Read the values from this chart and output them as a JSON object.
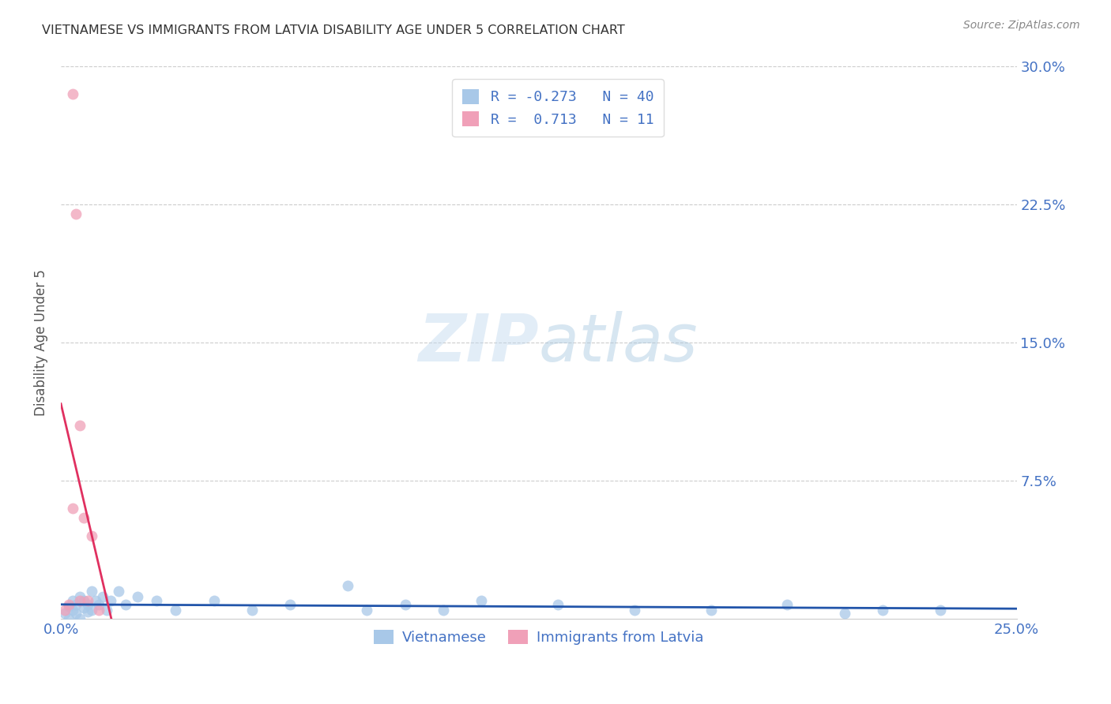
{
  "title": "VIETNAMESE VS IMMIGRANTS FROM LATVIA DISABILITY AGE UNDER 5 CORRELATION CHART",
  "source": "Source: ZipAtlas.com",
  "ylabel": "Disability Age Under 5",
  "xlabel": "",
  "xlim": [
    0.0,
    0.25
  ],
  "ylim": [
    0.0,
    0.3
  ],
  "r_vietnamese": -0.273,
  "n_vietnamese": 40,
  "r_latvia": 0.713,
  "n_latvia": 11,
  "blue_color": "#A8C8E8",
  "pink_color": "#F0A0B8",
  "blue_line_color": "#2255AA",
  "pink_line_color": "#E03060",
  "title_color": "#333333",
  "axis_label_color": "#555555",
  "tick_color": "#4472C4",
  "watermark_color": "#C8DCEF",
  "legend_color": "#4472C4",
  "vietnamese_x": [
    0.001,
    0.002,
    0.002,
    0.003,
    0.003,
    0.004,
    0.004,
    0.005,
    0.005,
    0.006,
    0.006,
    0.007,
    0.007,
    0.008,
    0.008,
    0.009,
    0.01,
    0.011,
    0.012,
    0.013,
    0.015,
    0.017,
    0.02,
    0.025,
    0.03,
    0.04,
    0.05,
    0.06,
    0.075,
    0.08,
    0.09,
    0.1,
    0.11,
    0.13,
    0.15,
    0.17,
    0.19,
    0.205,
    0.215,
    0.23
  ],
  "vietnamese_y": [
    0.003,
    0.007,
    0.0,
    0.005,
    0.01,
    0.003,
    0.008,
    0.0,
    0.012,
    0.006,
    0.01,
    0.004,
    0.008,
    0.015,
    0.005,
    0.01,
    0.008,
    0.012,
    0.005,
    0.01,
    0.015,
    0.008,
    0.012,
    0.01,
    0.005,
    0.01,
    0.005,
    0.008,
    0.018,
    0.005,
    0.008,
    0.005,
    0.01,
    0.008,
    0.005,
    0.005,
    0.008,
    0.003,
    0.005,
    0.005
  ],
  "latvia_x": [
    0.001,
    0.002,
    0.003,
    0.003,
    0.004,
    0.005,
    0.005,
    0.006,
    0.007,
    0.008,
    0.01
  ],
  "latvia_y": [
    0.005,
    0.008,
    0.285,
    0.06,
    0.22,
    0.105,
    0.01,
    0.055,
    0.01,
    0.045,
    0.005
  ]
}
